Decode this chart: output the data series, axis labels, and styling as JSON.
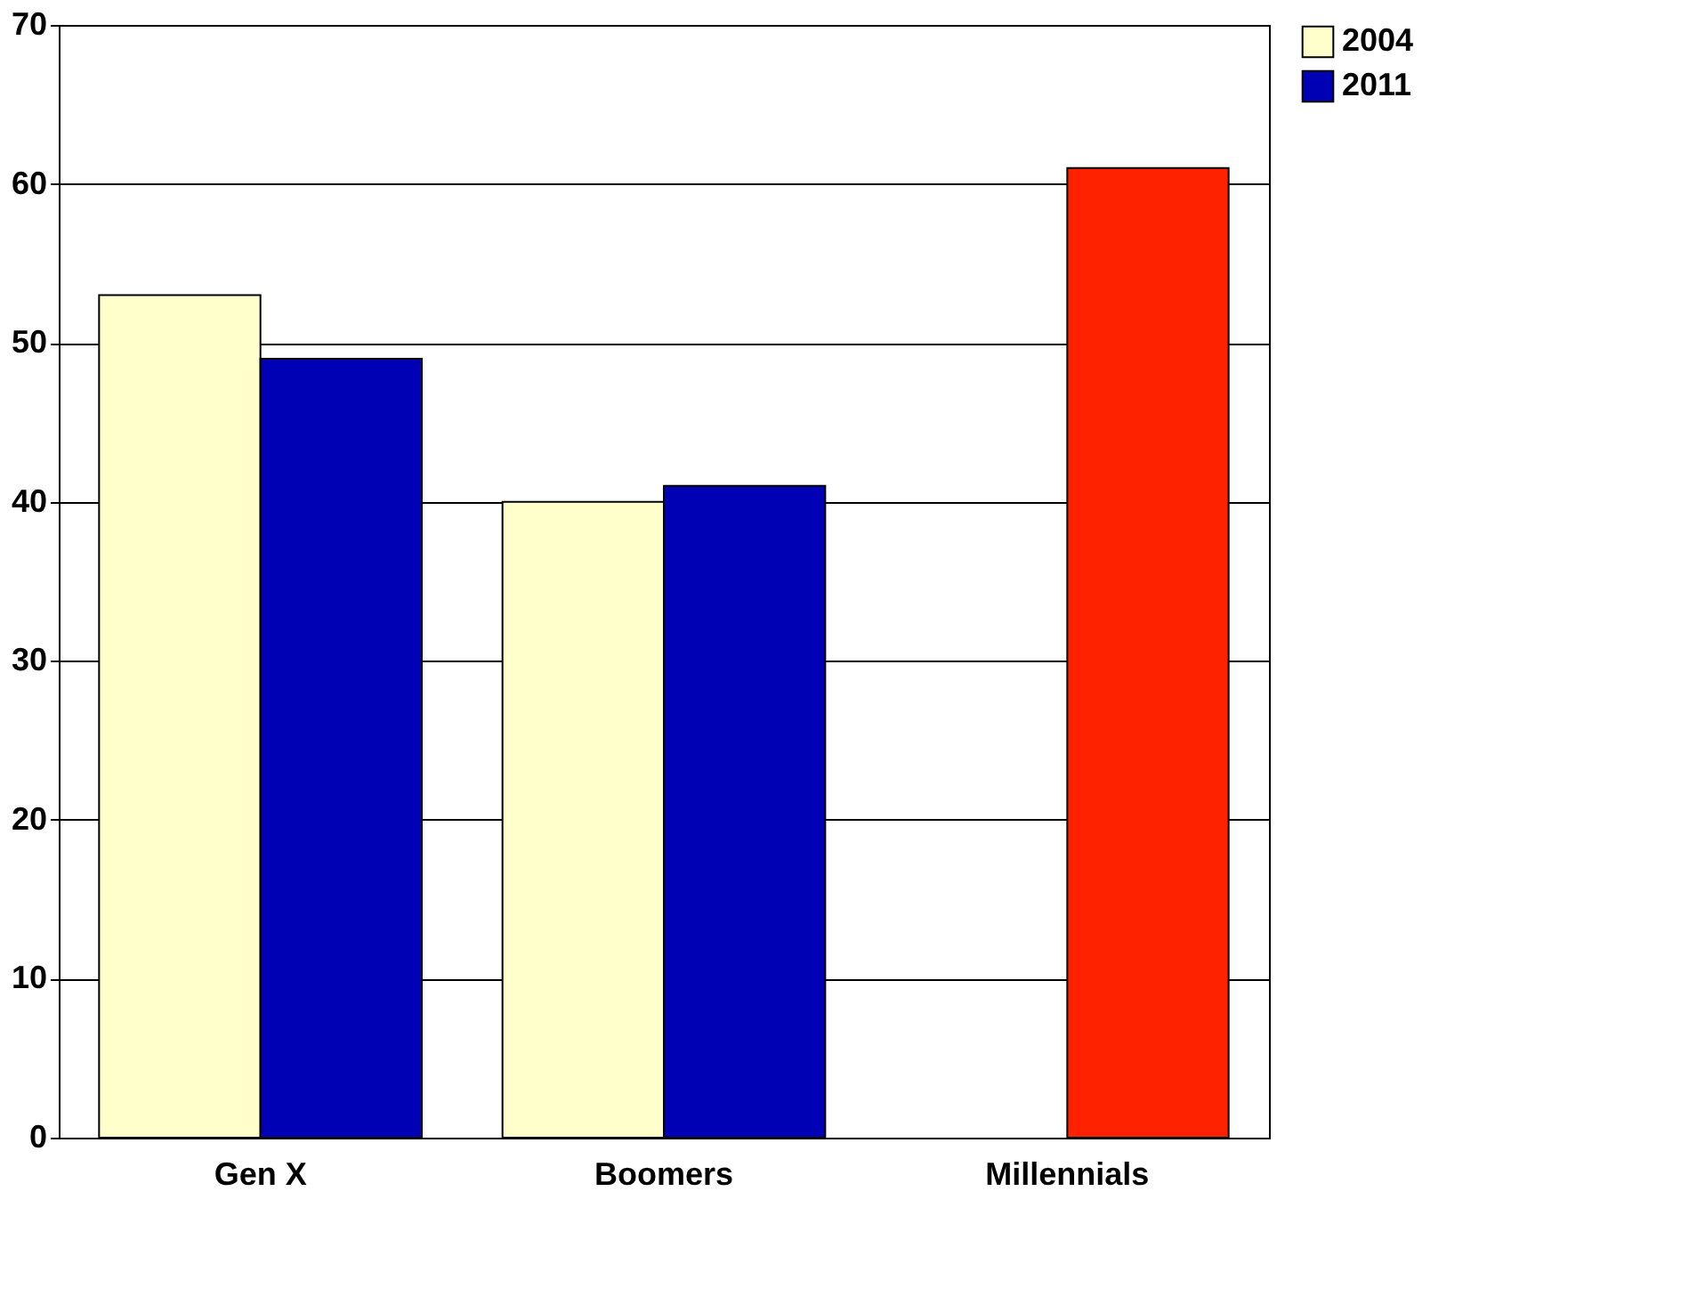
{
  "chart_data": {
    "type": "bar",
    "categories": [
      "Gen X",
      "Boomers",
      "Millennials"
    ],
    "series": [
      {
        "name": "2004",
        "color": "#ffffcc",
        "values": [
          53,
          40,
          null
        ]
      },
      {
        "name": "2011",
        "color": "#0000b4",
        "colors": [
          "#0000b4",
          "#0000b4",
          "#ff2200"
        ],
        "values": [
          49,
          41,
          61
        ]
      }
    ],
    "ylim": [
      0,
      70
    ],
    "yticks": [
      0,
      10,
      20,
      30,
      40,
      50,
      60,
      70
    ],
    "grid": "y",
    "legend": "right"
  }
}
